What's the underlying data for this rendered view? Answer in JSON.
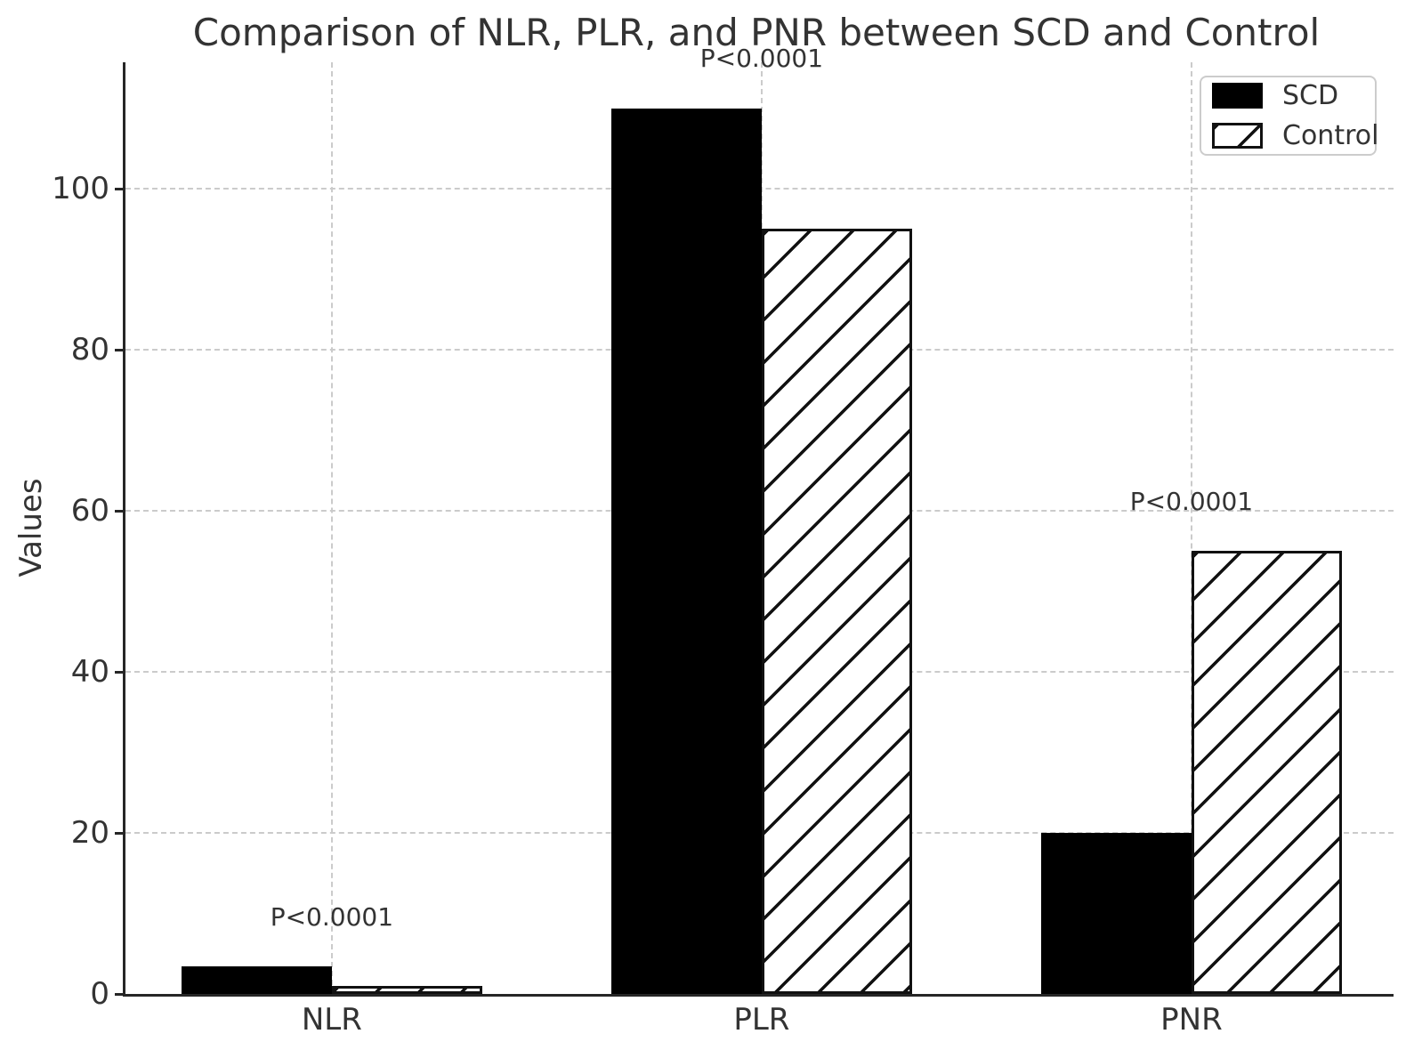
{
  "chart_data": {
    "type": "bar",
    "title": "Comparison of NLR, PLR, and PNR between SCD and Control",
    "xlabel": "",
    "ylabel": "Values",
    "categories": [
      "NLR",
      "PLR",
      "PNR"
    ],
    "series": [
      {
        "name": "SCD",
        "style": "solid",
        "color": "#000000",
        "values": [
          3.4,
          110,
          20
        ]
      },
      {
        "name": "Control",
        "style": "hatch",
        "hatch": "/",
        "face_color": "#ffffff",
        "edge_color": "#111111",
        "values": [
          1,
          95,
          55
        ]
      }
    ],
    "annotations": [
      {
        "category": "NLR",
        "text": "P<0.0001",
        "y": 8.4
      },
      {
        "category": "PLR",
        "text": "P<0.0001",
        "y": 115
      },
      {
        "category": "PNR",
        "text": "P<0.0001",
        "y": 60
      }
    ],
    "yticks": [
      0,
      20,
      40,
      60,
      80,
      100
    ],
    "ylim": [
      0,
      115.7
    ],
    "xlim": [
      -0.48,
      2.47
    ],
    "bar_width": 0.35,
    "grid": "both-dashed",
    "legend_position": "upper right"
  },
  "legend": {
    "items": [
      {
        "label": "SCD",
        "swatch": "solid-black"
      },
      {
        "label": "Control",
        "swatch": "hatched"
      }
    ]
  },
  "colors": {
    "background": "#ffffff",
    "text": "#333333",
    "spine": "#262626",
    "grid": "#cbcbcb",
    "bar_solid": "#000000",
    "bar_hatch_edge": "#111111",
    "legend_border": "#cccccc"
  }
}
